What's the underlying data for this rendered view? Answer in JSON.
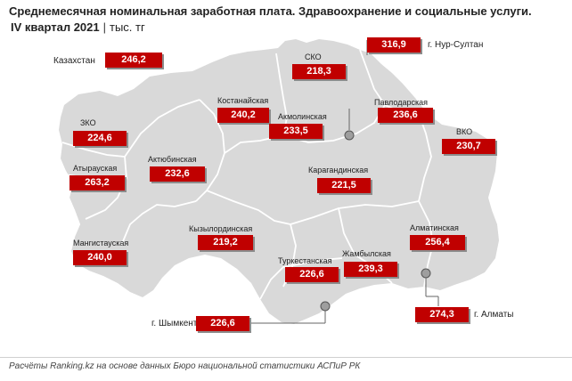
{
  "title": {
    "line1": "Среднемесячная номинальная заработная плата. Здравоохранение и социальные услуги.",
    "period": "IV квартал 2021",
    "separator": "|",
    "unit": "тыс. тг"
  },
  "country": {
    "name": "Казахстан",
    "value": "246,2"
  },
  "regions": [
    {
      "id": "zko",
      "name": "ЗКО",
      "value": "224,6"
    },
    {
      "id": "atyrau",
      "name": "Атырауская",
      "value": "263,2"
    },
    {
      "id": "mangistau",
      "name": "Мангистауская",
      "value": "240,0"
    },
    {
      "id": "aktobe",
      "name": "Актюбинская",
      "value": "232,6"
    },
    {
      "id": "kostanay",
      "name": "Костанайская",
      "value": "240,2"
    },
    {
      "id": "sko",
      "name": "СКО",
      "value": "218,3"
    },
    {
      "id": "akmola",
      "name": "Акмолинская",
      "value": "233,5"
    },
    {
      "id": "pavlodar",
      "name": "Павлодарская",
      "value": "236,6"
    },
    {
      "id": "vko",
      "name": "ВКО",
      "value": "230,7"
    },
    {
      "id": "karaganda",
      "name": "Карагандинская",
      "value": "221,5"
    },
    {
      "id": "kyzylorda",
      "name": "Кызылординская",
      "value": "219,2"
    },
    {
      "id": "turkestan",
      "name": "Туркестанская",
      "value": "226,6"
    },
    {
      "id": "zhambyl",
      "name": "Жамбылская",
      "value": "239,3"
    },
    {
      "id": "almaty-region",
      "name": "Алматинская",
      "value": "256,4"
    }
  ],
  "cities": [
    {
      "id": "nur-sultan",
      "name": "г. Нур-Султан",
      "value": "316,9"
    },
    {
      "id": "almaty",
      "name": "г. Алматы",
      "value": "274,3"
    },
    {
      "id": "shymkent",
      "name": "г. Шымкент",
      "value": "226,6"
    }
  ],
  "colors": {
    "value_box": "#c00000",
    "land": "#d9d9d9",
    "border": "#ffffff"
  },
  "source": "Расчёты Ranking.kz на основе данных Бюро национальной статистики АСПиР РК"
}
